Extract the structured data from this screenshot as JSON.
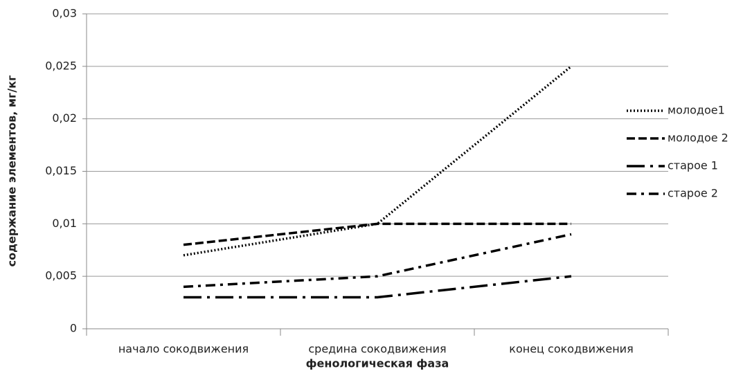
{
  "chart_data": {
    "type": "line",
    "xlabel": "фенологическая фаза",
    "ylabel": "содержание элементов, мг/кг",
    "categories": [
      "начало сокодвижения",
      "средина сокодвижения",
      "конец сокодвижения"
    ],
    "series": [
      {
        "name": "молодое1",
        "color": "#000000",
        "style": "dotted",
        "values": [
          0.007,
          0.01,
          0.025
        ]
      },
      {
        "name": "молодое 2",
        "color": "#000000",
        "style": "dashed",
        "values": [
          0.008,
          0.01,
          0.01
        ]
      },
      {
        "name": "старое 1",
        "color": "#000000",
        "style": "long-dash-dot",
        "values": [
          0.003,
          0.003,
          0.005
        ]
      },
      {
        "name": "старое 2",
        "color": "#000000",
        "style": "dash-dot",
        "values": [
          0.004,
          0.005,
          0.009
        ]
      }
    ],
    "ylim": [
      0,
      0.03
    ],
    "yticks": [
      0,
      {
        "value": 0.005,
        "label": "0,005"
      },
      {
        "value": 0.01,
        "label": "0,01"
      },
      {
        "value": 0.015,
        "label": "0,015"
      },
      {
        "value": 0.02,
        "label": "0,02"
      },
      {
        "value": 0.025,
        "label": "0,025"
      },
      {
        "value": 0.03,
        "label": "0,03"
      }
    ],
    "grid": true,
    "legend": "right"
  }
}
